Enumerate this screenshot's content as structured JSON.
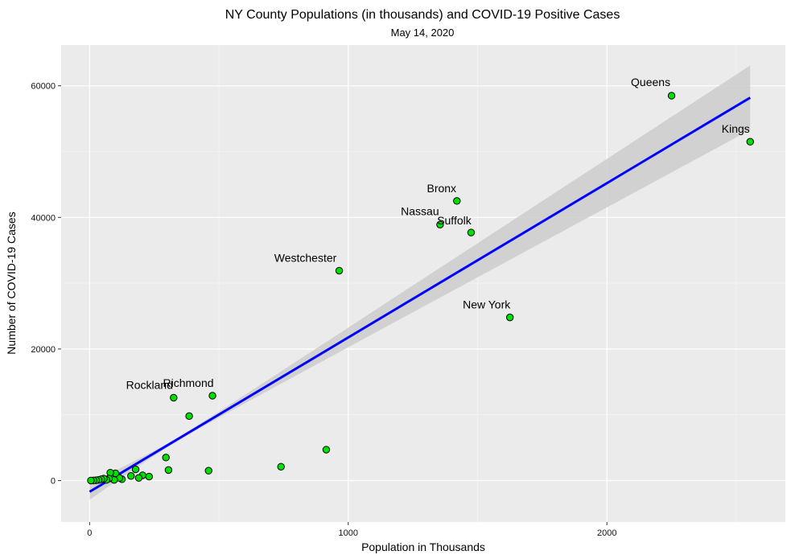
{
  "chart_data": {
    "type": "scatter",
    "title": "NY County Populations (in thousands) and COVID-19 Positive Cases",
    "subtitle": "May 14, 2020",
    "xlabel": "Population in Thousands",
    "ylabel": "Number of COVID-19 Cases",
    "xlim": [
      -110,
      2690
    ],
    "ylim": [
      -6300,
      66200
    ],
    "x_ticks": [
      0,
      1000,
      2000
    ],
    "y_ticks": [
      0,
      20000,
      40000,
      60000
    ],
    "grid": true,
    "background": "#ebebeb",
    "point_color": "#00e000",
    "point_edge_color": "#000000",
    "line_color": "#0000ff",
    "band_color": "#cccccc",
    "regression": {
      "x": [
        0,
        2554
      ],
      "y": [
        -1700,
        58200
      ],
      "ci_halfwidth_at_ends": [
        1200,
        4900
      ],
      "ci_halfwidth_at_mean": 250,
      "x_mean": 330
    },
    "points": [
      {
        "name": "Queens",
        "x": 2250,
        "y": 58500,
        "labeled": true
      },
      {
        "name": "Kings",
        "x": 2554,
        "y": 51500,
        "labeled": true
      },
      {
        "name": "Bronx",
        "x": 1420,
        "y": 42500,
        "labeled": true
      },
      {
        "name": "Nassau",
        "x": 1355,
        "y": 38900,
        "labeled": true
      },
      {
        "name": "Suffolk",
        "x": 1475,
        "y": 37700,
        "labeled": true
      },
      {
        "name": "Westchester",
        "x": 965,
        "y": 31900,
        "labeled": true
      },
      {
        "name": "New York",
        "x": 1625,
        "y": 24800,
        "labeled": true
      },
      {
        "name": "Richmond",
        "x": 475,
        "y": 12900,
        "labeled": true
      },
      {
        "name": "Rockland",
        "x": 325,
        "y": 12600,
        "labeled": true
      },
      {
        "name": "",
        "x": 385,
        "y": 9800,
        "labeled": false
      },
      {
        "name": "",
        "x": 915,
        "y": 4700,
        "labeled": false
      },
      {
        "name": "",
        "x": 295,
        "y": 3500,
        "labeled": false
      },
      {
        "name": "",
        "x": 740,
        "y": 2100,
        "labeled": false
      },
      {
        "name": "",
        "x": 305,
        "y": 1600,
        "labeled": false
      },
      {
        "name": "",
        "x": 460,
        "y": 1500,
        "labeled": false
      },
      {
        "name": "",
        "x": 178,
        "y": 1700,
        "labeled": false
      },
      {
        "name": "",
        "x": 230,
        "y": 600,
        "labeled": false
      },
      {
        "name": "",
        "x": 205,
        "y": 800,
        "labeled": false
      },
      {
        "name": "",
        "x": 190,
        "y": 400,
        "labeled": false
      },
      {
        "name": "",
        "x": 160,
        "y": 700,
        "labeled": false
      },
      {
        "name": "",
        "x": 125,
        "y": 200,
        "labeled": false
      },
      {
        "name": "",
        "x": 115,
        "y": 400,
        "labeled": false
      },
      {
        "name": "",
        "x": 100,
        "y": 1100,
        "labeled": false
      },
      {
        "name": "",
        "x": 80,
        "y": 1200,
        "labeled": false
      },
      {
        "name": "",
        "x": 95,
        "y": 100,
        "labeled": false
      },
      {
        "name": "",
        "x": 75,
        "y": 300,
        "labeled": false
      },
      {
        "name": "",
        "x": 65,
        "y": 100,
        "labeled": false
      },
      {
        "name": "",
        "x": 55,
        "y": 300,
        "labeled": false
      },
      {
        "name": "",
        "x": 45,
        "y": 200,
        "labeled": false
      },
      {
        "name": "",
        "x": 35,
        "y": 100,
        "labeled": false
      },
      {
        "name": "",
        "x": 25,
        "y": 50,
        "labeled": false
      },
      {
        "name": "",
        "x": 15,
        "y": 20,
        "labeled": false
      },
      {
        "name": "",
        "x": 5,
        "y": 10,
        "labeled": false
      }
    ]
  }
}
